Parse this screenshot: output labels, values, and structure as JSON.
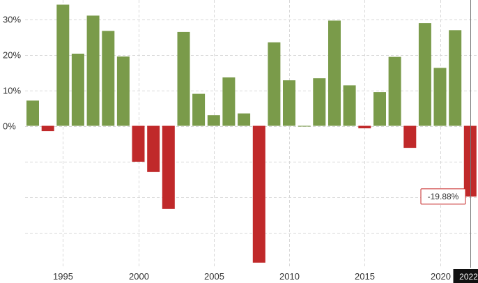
{
  "chart_data": {
    "type": "bar",
    "title": "",
    "xlabel": "",
    "ylabel": "",
    "ylim": [
      -39,
      35
    ],
    "y_ticks": [
      0,
      10,
      20,
      30
    ],
    "y_tick_labels": [
      "0%",
      "10%",
      "20%",
      "30%"
    ],
    "x_ticks": [
      1995,
      2000,
      2005,
      2010,
      2015,
      2020
    ],
    "x_tick_labels": [
      "1995",
      "2000",
      "2005",
      "2010",
      "2015",
      "2020"
    ],
    "grid": true,
    "positive_color": "#7a9b4a",
    "negative_color": "#c0292a",
    "x": [
      1993,
      1994,
      1995,
      1996,
      1997,
      1998,
      1999,
      2000,
      2001,
      2002,
      2003,
      2004,
      2005,
      2006,
      2007,
      2008,
      2009,
      2010,
      2011,
      2012,
      2013,
      2014,
      2015,
      2016,
      2017,
      2018,
      2019,
      2020,
      2021,
      2022
    ],
    "values": [
      7.1,
      -1.5,
      34.1,
      20.3,
      31.0,
      26.7,
      19.5,
      -10.1,
      -13.0,
      -23.4,
      26.4,
      9.0,
      3.0,
      13.6,
      3.5,
      -38.5,
      23.5,
      12.8,
      0.0,
      13.4,
      29.6,
      11.4,
      -0.7,
      9.5,
      19.4,
      -6.2,
      28.9,
      16.3,
      26.9,
      -19.88
    ],
    "callout": {
      "label": "-19.88%",
      "year": "2022"
    }
  }
}
